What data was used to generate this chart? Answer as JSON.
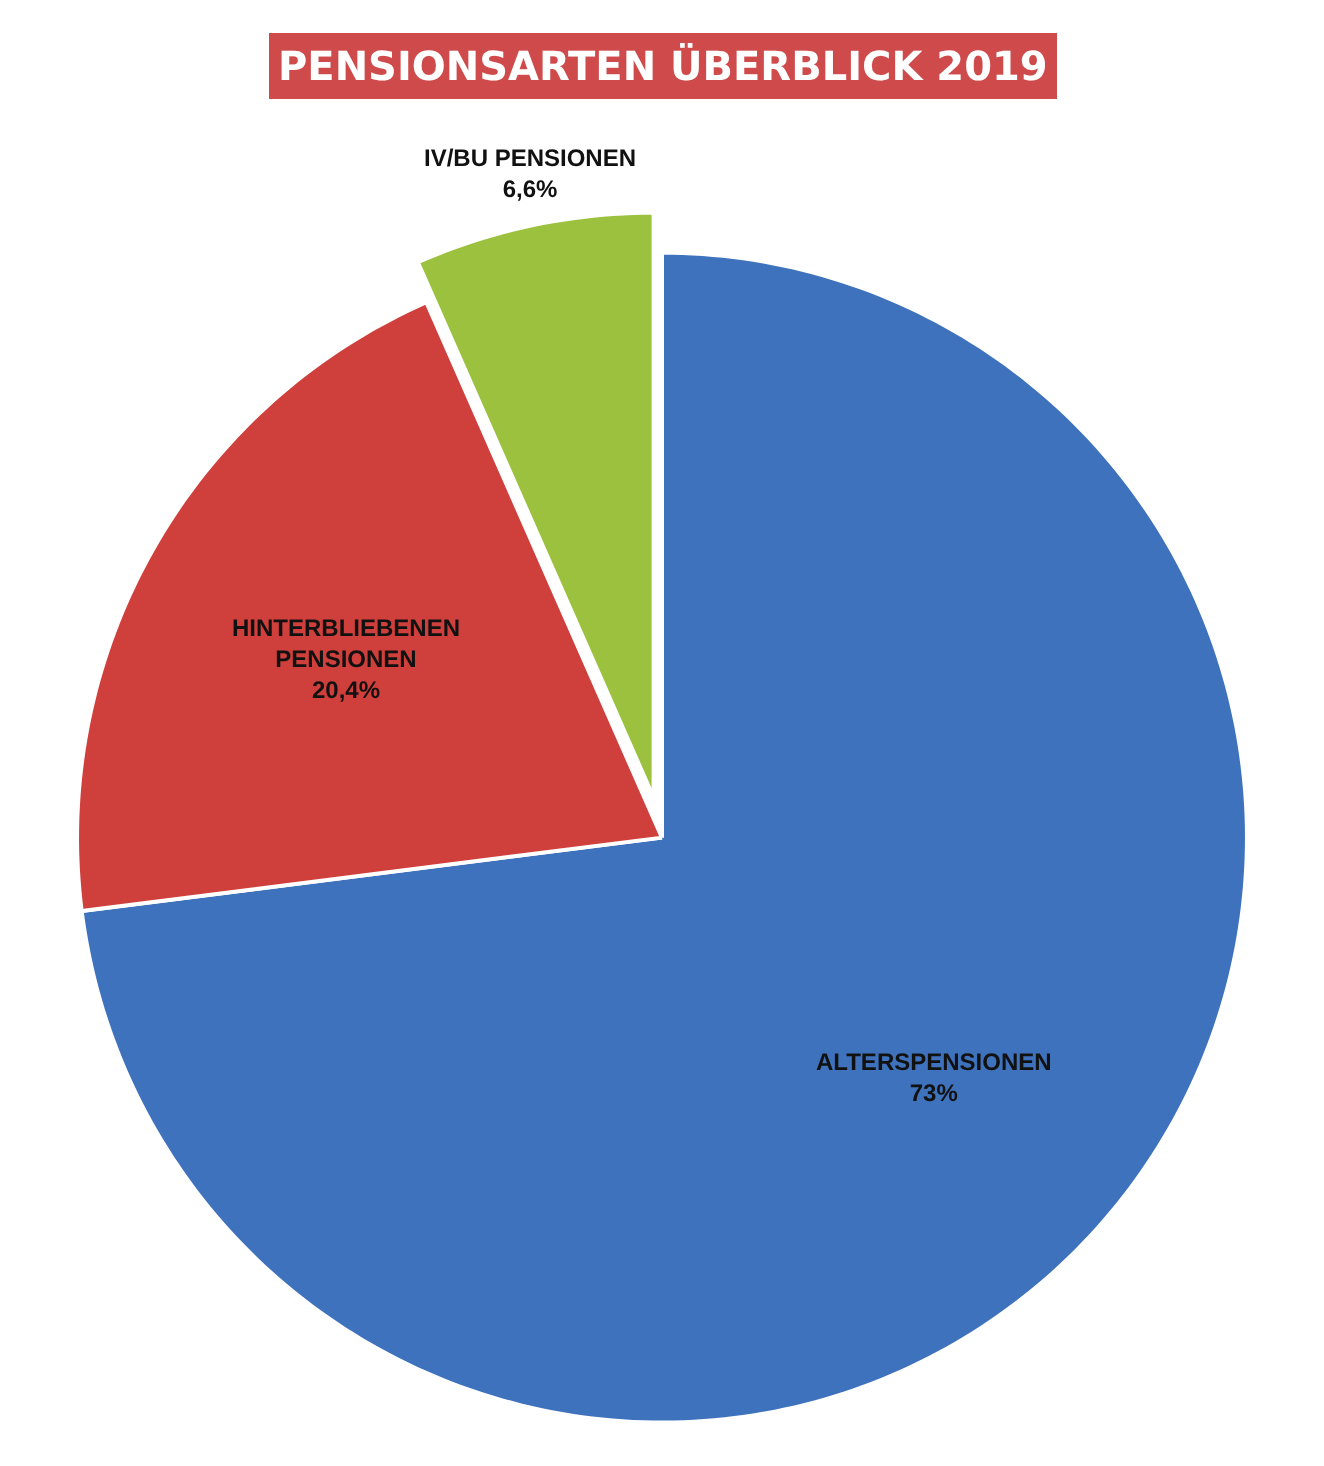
{
  "chart_data": {
    "type": "pie",
    "title": "PENSIONSARTEN ÜBERBLICK 2019",
    "categories": [
      "ALTERSPENSIONEN",
      "HINTERBLIEBENEN\nPENSIONEN",
      "IV/BU PENSIONEN"
    ],
    "values": [
      73,
      20.4,
      6.6
    ],
    "value_labels": [
      "73%",
      "20,4%",
      "6,6%"
    ],
    "colors": [
      "#3f72bd",
      "#cf3f3b",
      "#9cc13f"
    ],
    "legend": false
  }
}
